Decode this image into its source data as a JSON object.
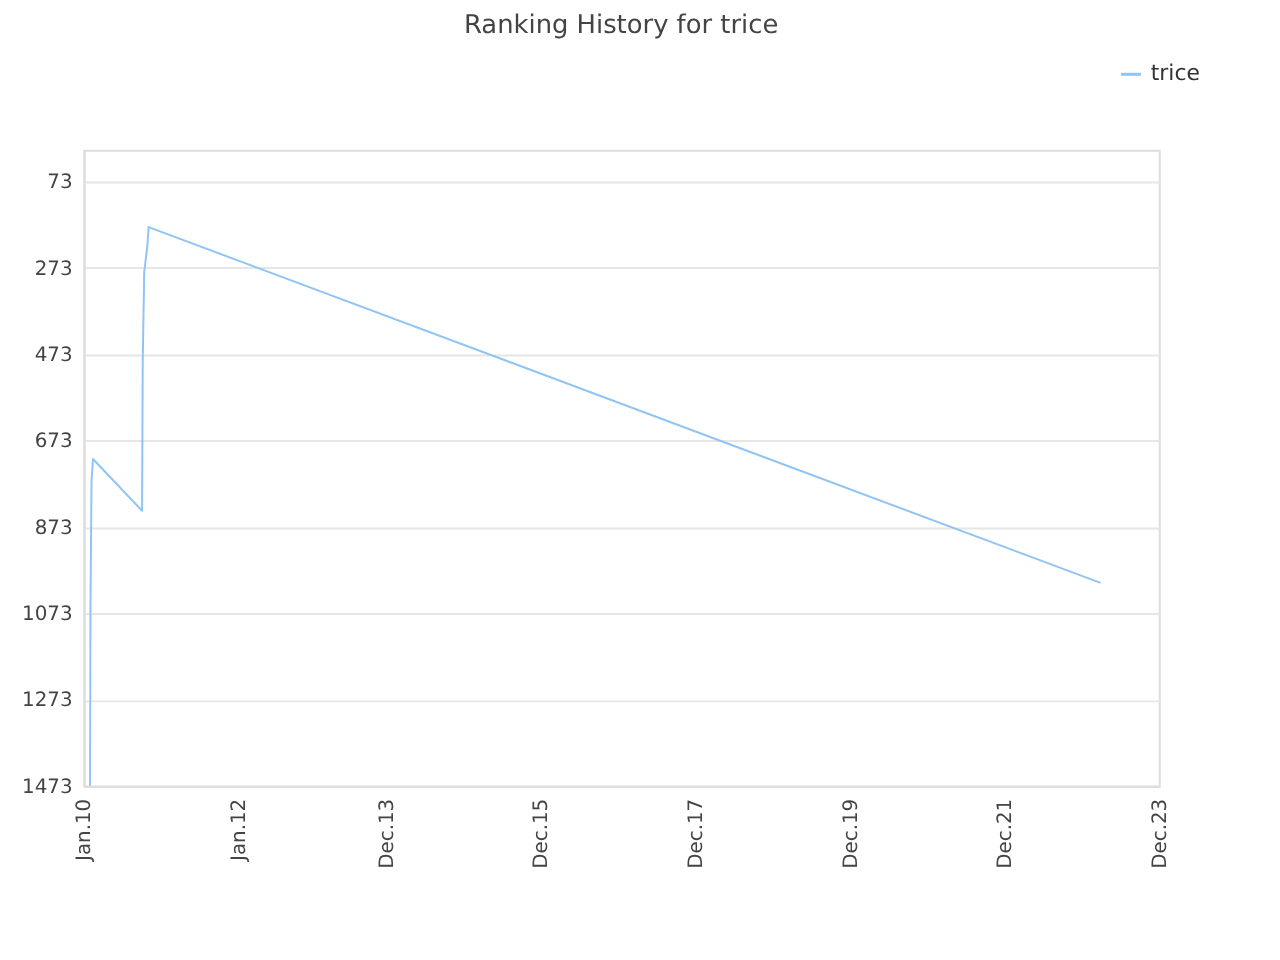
{
  "chart_data": {
    "type": "line",
    "title": "Ranking History for trice",
    "x": [
      "2010-02-01",
      "2010-02-03",
      "2010-02-08",
      "2010-02-15",
      "2010-10-05",
      "2010-10-08",
      "2010-10-15",
      "2010-10-30",
      "2010-11-05",
      "2023-03-01"
    ],
    "series": [
      {
        "name": "trice",
        "color": "#90c4f5",
        "values": [
          1473,
          1066,
          767,
          716,
          836,
          491,
          283,
          222,
          179,
          1003
        ]
      }
    ],
    "xlim": [
      "2010-01-01",
      "2023-12-01"
    ],
    "xticks": [
      {
        "value": "2010-01-01",
        "label": "Jan.10"
      },
      {
        "value": "2012-01-01",
        "label": "Jan.12"
      },
      {
        "value": "2013-12-01",
        "label": "Dec.13"
      },
      {
        "value": "2015-12-01",
        "label": "Dec.15"
      },
      {
        "value": "2017-12-01",
        "label": "Dec.17"
      },
      {
        "value": "2019-12-01",
        "label": "Dec.19"
      },
      {
        "value": "2021-12-01",
        "label": "Dec.21"
      },
      {
        "value": "2023-12-01",
        "label": "Dec.23"
      }
    ],
    "ylim": [
      1473,
      0
    ],
    "yticks": [
      73,
      273,
      473,
      673,
      873,
      1073,
      1273,
      1473
    ],
    "grid": "y",
    "legend": "top right",
    "marker": "none",
    "line_style": "solid"
  }
}
